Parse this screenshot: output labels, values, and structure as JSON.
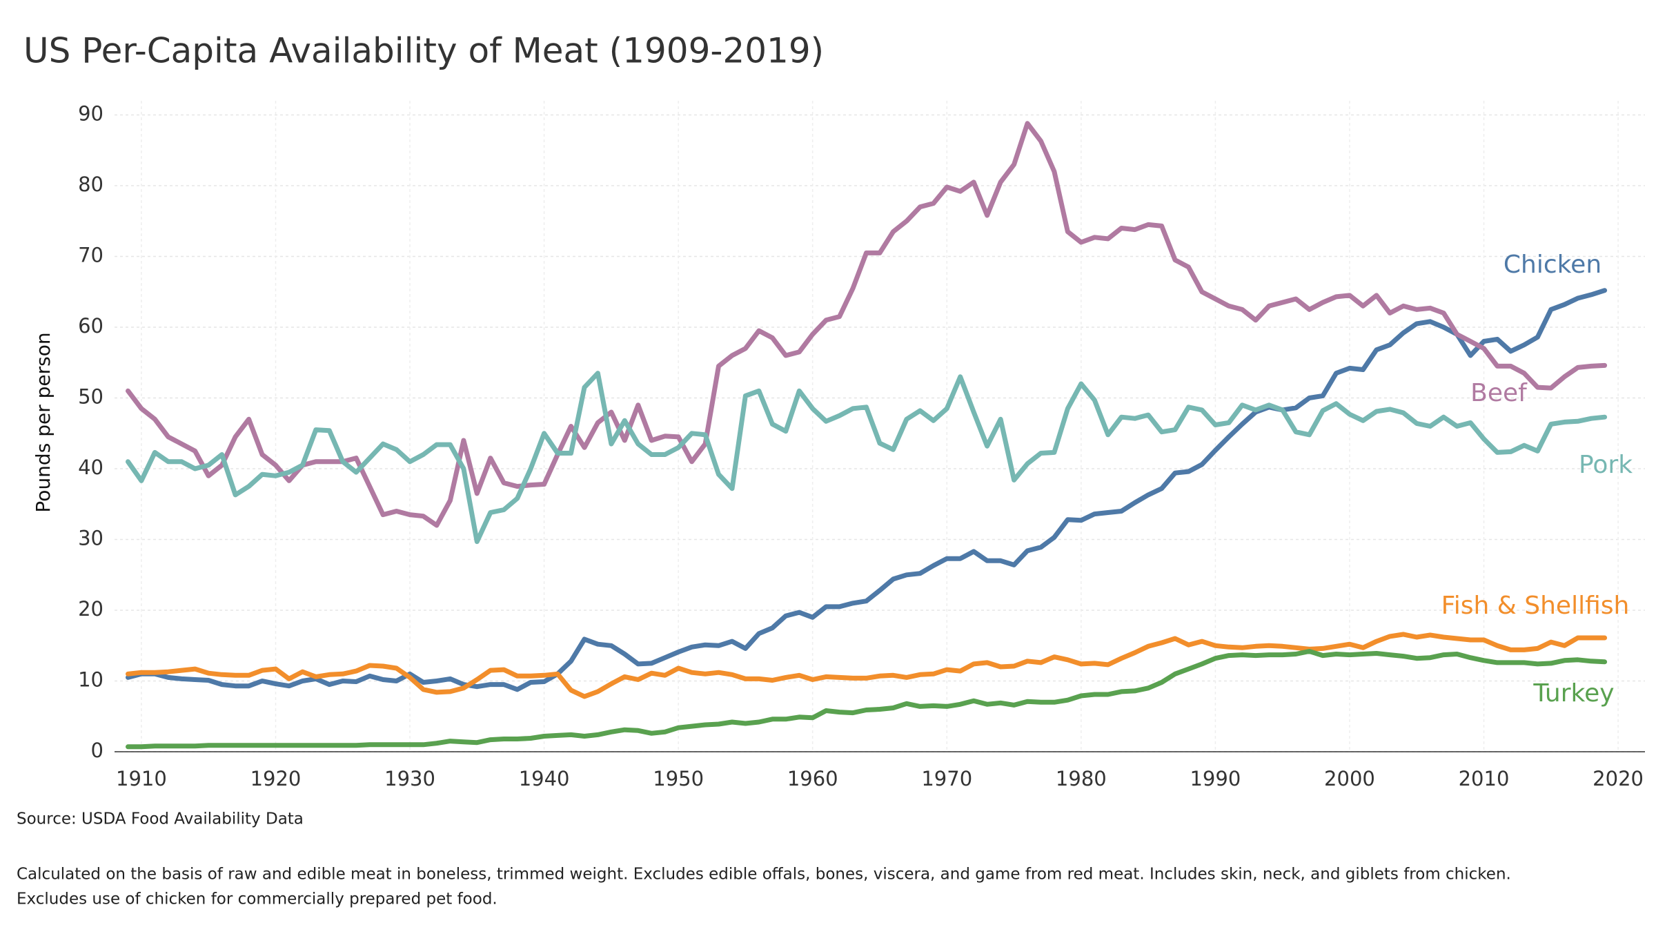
{
  "chart_data": {
    "type": "line",
    "title": "US Per-Capita Availability of Meat (1909-2019)",
    "y_label": "Pounds per person",
    "source": "Source: USDA Food Availability Data",
    "notes": [
      "Calculated on the basis of raw and edible meat in boneless, trimmed weight. Excludes edible offals, bones, viscera, and game from red meat. Includes skin, neck, and giblets from chicken.",
      "Excludes use of chicken for commercially prepared pet food."
    ],
    "x": [
      1909,
      1910,
      1911,
      1912,
      1913,
      1914,
      1915,
      1916,
      1917,
      1918,
      1919,
      1920,
      1921,
      1922,
      1923,
      1924,
      1925,
      1926,
      1927,
      1928,
      1929,
      1930,
      1931,
      1932,
      1933,
      1934,
      1935,
      1936,
      1937,
      1938,
      1939,
      1940,
      1941,
      1942,
      1943,
      1944,
      1945,
      1946,
      1947,
      1948,
      1949,
      1950,
      1951,
      1952,
      1953,
      1954,
      1955,
      1956,
      1957,
      1958,
      1959,
      1960,
      1961,
      1962,
      1963,
      1964,
      1965,
      1966,
      1967,
      1968,
      1969,
      1970,
      1971,
      1972,
      1973,
      1974,
      1975,
      1976,
      1977,
      1978,
      1979,
      1980,
      1981,
      1982,
      1983,
      1984,
      1985,
      1986,
      1987,
      1988,
      1989,
      1990,
      1991,
      1992,
      1993,
      1994,
      1995,
      1996,
      1997,
      1998,
      1999,
      2000,
      2001,
      2002,
      2003,
      2004,
      2005,
      2006,
      2007,
      2008,
      2009,
      2010,
      2011,
      2012,
      2013,
      2014,
      2015,
      2016,
      2017,
      2018,
      2019
    ],
    "series": [
      {
        "name": "Chicken",
        "color": "#4e79a7",
        "values": [
          10.5,
          11,
          11,
          10.5,
          10.3,
          10.2,
          10.1,
          9.5,
          9.3,
          9.3,
          10,
          9.6,
          9.3,
          10,
          10.3,
          9.5,
          10,
          9.9,
          10.7,
          10.2,
          10,
          11,
          9.8,
          10,
          10.3,
          9.5,
          9.2,
          9.5,
          9.5,
          8.8,
          9.8,
          9.9,
          11,
          12.8,
          15.9,
          15.2,
          15,
          13.8,
          12.4,
          12.5,
          13.3,
          14.1,
          14.8,
          15.1,
          15,
          15.6,
          14.6,
          16.7,
          17.5,
          19.2,
          19.7,
          19,
          20.5,
          20.5,
          21,
          21.3,
          22.8,
          24.4,
          25,
          25.2,
          26.3,
          27.3,
          27.3,
          28.3,
          27,
          27,
          26.4,
          28.4,
          28.9,
          30.3,
          32.8,
          32.7,
          33.6,
          33.8,
          34,
          35.2,
          36.3,
          37.2,
          39.4,
          39.6,
          40.6,
          42.6,
          44.5,
          46.3,
          48,
          48.7,
          48.3,
          48.6,
          50,
          50.3,
          53.5,
          54.2,
          54,
          56.8,
          57.5,
          59.2,
          60.5,
          60.8,
          60,
          59,
          56,
          58,
          58.3,
          56.6,
          57.5,
          58.6,
          62.5,
          63.2,
          64.1,
          64.6,
          65.2
        ]
      },
      {
        "name": "Beef",
        "color": "#b07aa1",
        "values": [
          51,
          48.5,
          47,
          44.5,
          43.5,
          42.5,
          39,
          40.5,
          44.5,
          47,
          42,
          40.5,
          38.3,
          40.5,
          41,
          41,
          41,
          41.5,
          37.5,
          33.5,
          34,
          33.5,
          33.3,
          32,
          35.5,
          44,
          36.5,
          41.5,
          38,
          37.5,
          37.7,
          37.8,
          42,
          46,
          43,
          46.5,
          48,
          44,
          49,
          44,
          44.6,
          44.5,
          41,
          43.5,
          54.5,
          56,
          57,
          59.5,
          58.5,
          56,
          56.5,
          59,
          61,
          61.5,
          65.5,
          70.5,
          70.5,
          73.5,
          75,
          77,
          77.5,
          79.8,
          79.2,
          80.5,
          75.8,
          80.5,
          83,
          88.8,
          86.3,
          82,
          73.5,
          72,
          72.7,
          72.5,
          74,
          73.8,
          74.5,
          74.3,
          69.5,
          68.5,
          65,
          64,
          63,
          62.5,
          61,
          63,
          63.5,
          64,
          62.5,
          63.5,
          64.3,
          64.5,
          63,
          64.5,
          62,
          63,
          62.5,
          62.7,
          62,
          59,
          58,
          57,
          54.5,
          54.5,
          53.5,
          51.5,
          51.4,
          53,
          54.3,
          54.5,
          54.6
        ]
      },
      {
        "name": "Pork",
        "color": "#76b7b2",
        "values": [
          41,
          38.3,
          42.3,
          41,
          41,
          40,
          40.5,
          42,
          36.3,
          37.5,
          39.2,
          39,
          39.5,
          40.5,
          45.5,
          45.4,
          41,
          39.5,
          41.5,
          43.5,
          42.7,
          41,
          42,
          43.4,
          43.4,
          40,
          29.7,
          33.8,
          34.2,
          35.8,
          40,
          45,
          42.2,
          42.2,
          51.5,
          53.5,
          43.5,
          46.8,
          43.5,
          42,
          42,
          43,
          45,
          44.8,
          39.2,
          37.2,
          50.3,
          51,
          46.3,
          45.3,
          51,
          48.5,
          46.7,
          47.5,
          48.5,
          48.7,
          43.6,
          42.7,
          47,
          48.2,
          46.8,
          48.5,
          53,
          48,
          43.2,
          47,
          38.4,
          40.7,
          42.2,
          42.3,
          48.5,
          52,
          49.7,
          44.8,
          47.3,
          47.1,
          47.6,
          45.2,
          45.5,
          48.7,
          48.3,
          46.2,
          46.5,
          49,
          48.3,
          49,
          48.3,
          45.2,
          44.8,
          48.2,
          49.2,
          47.7,
          46.8,
          48.1,
          48.4,
          47.9,
          46.4,
          46,
          47.3,
          46,
          46.5,
          44.2,
          42.3,
          42.4,
          43.3,
          42.5,
          46.3,
          46.6,
          46.7,
          47.1,
          47.3
        ]
      },
      {
        "name": "Fish & Shellfish",
        "color": "#f28e2b",
        "values": [
          11,
          11.2,
          11.2,
          11.3,
          11.5,
          11.7,
          11.1,
          10.9,
          10.8,
          10.8,
          11.5,
          11.7,
          10.3,
          11.3,
          10.6,
          10.9,
          11,
          11.4,
          12.2,
          12.1,
          11.8,
          10.5,
          8.8,
          8.4,
          8.5,
          9,
          10.2,
          11.5,
          11.6,
          10.7,
          10.7,
          10.8,
          11,
          8.7,
          7.8,
          8.5,
          9.6,
          10.6,
          10.2,
          11.1,
          10.8,
          11.8,
          11.2,
          11,
          11.2,
          10.9,
          10.3,
          10.3,
          10.1,
          10.5,
          10.8,
          10.2,
          10.6,
          10.5,
          10.4,
          10.4,
          10.7,
          10.8,
          10.5,
          10.9,
          11,
          11.6,
          11.4,
          12.4,
          12.6,
          12,
          12.1,
          12.8,
          12.6,
          13.4,
          13,
          12.4,
          12.5,
          12.3,
          13.2,
          14,
          14.9,
          15.4,
          16,
          15.1,
          15.6,
          15,
          14.8,
          14.7,
          14.9,
          15,
          14.9,
          14.7,
          14.5,
          14.6,
          14.9,
          15.2,
          14.7,
          15.6,
          16.3,
          16.6,
          16.2,
          16.5,
          16.2,
          16,
          15.8,
          15.8,
          15,
          14.4,
          14.4,
          14.6,
          15.5,
          15,
          16.1,
          16.1,
          16.1
        ]
      },
      {
        "name": "Turkey",
        "color": "#59a14f",
        "values": [
          0.7,
          0.7,
          0.8,
          0.8,
          0.8,
          0.8,
          0.9,
          0.9,
          0.9,
          0.9,
          0.9,
          0.9,
          0.9,
          0.9,
          0.9,
          0.9,
          0.9,
          0.9,
          1.0,
          1.0,
          1.0,
          1.0,
          1.0,
          1.2,
          1.5,
          1.4,
          1.3,
          1.7,
          1.8,
          1.8,
          1.9,
          2.2,
          2.3,
          2.4,
          2.2,
          2.4,
          2.8,
          3.1,
          3.0,
          2.6,
          2.8,
          3.4,
          3.6,
          3.8,
          3.9,
          4.2,
          4.0,
          4.2,
          4.6,
          4.6,
          4.9,
          4.8,
          5.8,
          5.6,
          5.5,
          5.9,
          6.0,
          6.2,
          6.8,
          6.4,
          6.5,
          6.4,
          6.7,
          7.2,
          6.7,
          6.9,
          6.6,
          7.1,
          7.0,
          7.0,
          7.3,
          7.9,
          8.1,
          8.1,
          8.5,
          8.6,
          9.0,
          9.8,
          11.0,
          11.7,
          12.4,
          13.2,
          13.6,
          13.7,
          13.6,
          13.7,
          13.7,
          13.8,
          14.2,
          13.6,
          13.8,
          13.7,
          13.8,
          13.9,
          13.7,
          13.5,
          13.2,
          13.3,
          13.7,
          13.8,
          13.3,
          12.9,
          12.6,
          12.6,
          12.6,
          12.4,
          12.5,
          12.9,
          13.0,
          12.8,
          12.7
        ]
      }
    ],
    "xlim": [
      1908,
      2022
    ],
    "xticks": [
      1910,
      1920,
      1930,
      1940,
      1950,
      1960,
      1970,
      1980,
      1990,
      2000,
      2010,
      2020
    ],
    "ylim": [
      0,
      92
    ],
    "yticks": [
      0,
      10,
      20,
      30,
      40,
      50,
      60,
      70,
      80,
      90
    ],
    "grid": true
  }
}
